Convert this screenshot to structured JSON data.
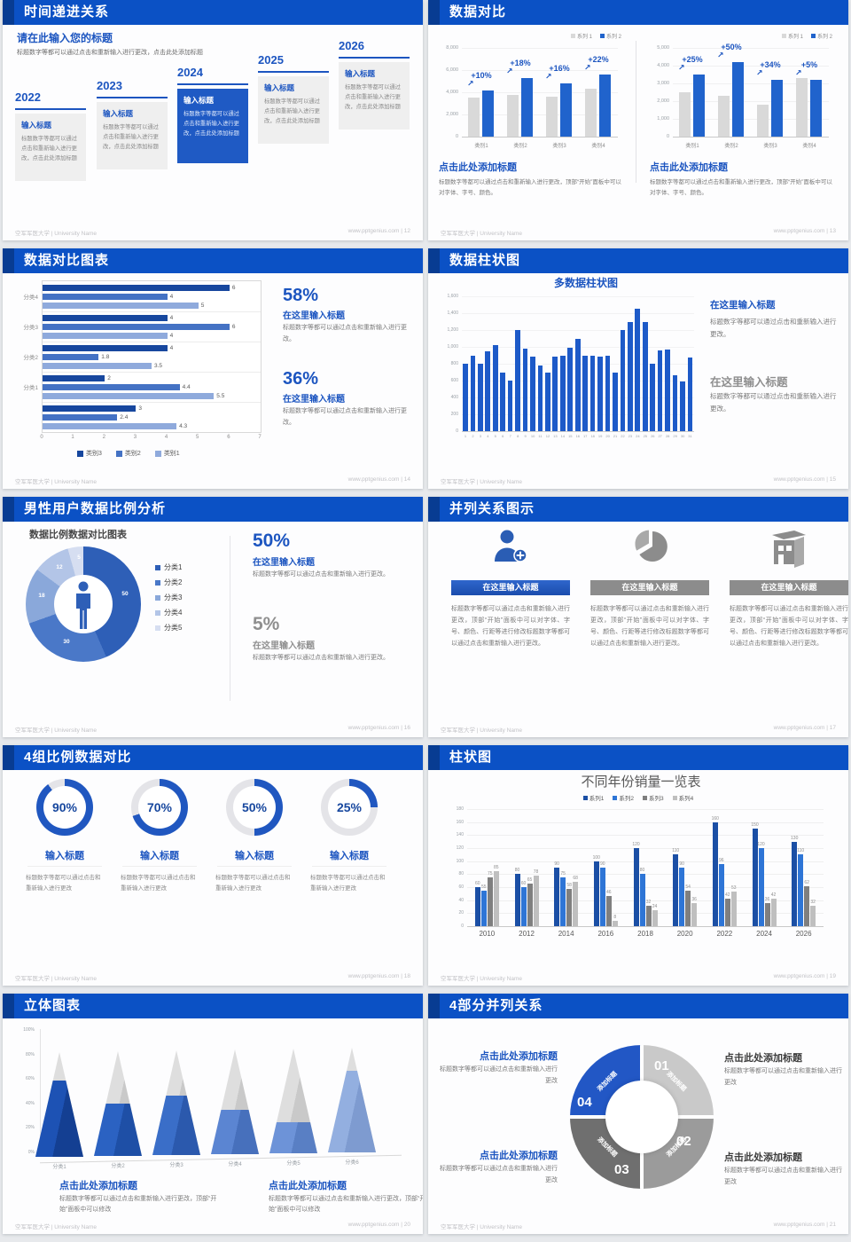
{
  "footer": {
    "left": "空军军医大学 | University Name",
    "site": "www.pptgenius.com",
    "sep": "|"
  },
  "palette": {
    "accent": "#1c55c0",
    "header": "#0b51c5",
    "header_dark": "#083c92",
    "gray_bar": "#d9d9d9",
    "body_text": "#7a7a7a"
  },
  "slides": [
    {
      "title": "时间递进关系",
      "page": "12",
      "intro": {
        "title": "请在此输入您的标题",
        "body": "标题数字等都可以通过点击和重新输入进行更改，点击此处添加标题"
      },
      "item_title": "输入标题",
      "item_body": "标题数字等都可以通过点击和重新输入进行更改，点击此处添加标题",
      "years": [
        "2022",
        "2023",
        "2024",
        "2025",
        "2026"
      ],
      "highlight_year": "2024"
    },
    {
      "title": "数据对比",
      "page": "13",
      "caption_title": "点击此处添加标题",
      "caption_body": "标题数字等都可以通过点击和重新输入进行更改，顶部“开始”面板中可以对字体、字号、颜色。"
    },
    {
      "title": "数据对比图表",
      "page": "14",
      "stats": [
        {
          "value": "58%",
          "title": "在这里输入标题",
          "body": "标题数字等都可以通过点击和重新输入进行更改。",
          "style": "blue"
        },
        {
          "value": "36%",
          "title": "在这里输入标题",
          "body": "标题数字等都可以通过点击和重新输入进行更改。",
          "style": "blue"
        }
      ]
    },
    {
      "title": "数据柱状图",
      "page": "15",
      "notes": [
        {
          "title": "在这里输入标题",
          "body": "标题数字等都可以通过点击和重新输入进行更改。",
          "style": "blue"
        },
        {
          "title": "在这里输入标题",
          "body": "标题数字等都可以通过点击和重新输入进行更改。",
          "style": "gray"
        }
      ]
    },
    {
      "title": "男性用户数据比例分析",
      "page": "16",
      "stats": [
        {
          "value": "50%",
          "title": "在这里输入标题",
          "body": "标题数字等都可以通过点击和重新输入进行更改。",
          "style": "blue"
        },
        {
          "value": "5%",
          "title": "在这里输入标题",
          "body": "标题数字等都可以通过点击和重新输入进行更改。",
          "style": "gray"
        }
      ]
    },
    {
      "title": "并列关系图示",
      "page": "17",
      "banner_title": "在这里输入标题",
      "item_body": "标题数字等都可以通过点击和重新输入进行更改，顶部“开始”面板中可以对字体、字号、颜色、行距等进行修改标题数字等都可以通过点击和重新输入进行更改。",
      "items": [
        {
          "icon": "person-plus-icon",
          "style": "blue"
        },
        {
          "icon": "pie-chart-icon",
          "style": "gray"
        },
        {
          "icon": "building-icon",
          "style": "gray"
        }
      ]
    },
    {
      "title": "4组比例数据对比",
      "page": "18",
      "item_title": "输入标题",
      "item_body": "标题数字等都可以通过点击和重新输入进行更改"
    },
    {
      "title": "柱状图",
      "page": "19"
    },
    {
      "title": "立体图表",
      "page": "20",
      "caption_title": "点击此处添加标题",
      "caption_body": "标题数字等都可以通过点击和重新输入进行更改，顶部“开始”面板中可以修改"
    },
    {
      "title": "4部分并列关系",
      "page": "21",
      "callout_title": "点击此处添加标题",
      "callout_body": "标题数字等都可以通过点击和重新输入进行更改",
      "segment_label": "添加标题",
      "numbers": [
        "01",
        "02",
        "03",
        "04"
      ]
    }
  ],
  "chart_data": [
    {
      "type": "bar",
      "slide_page": "13",
      "position": "left",
      "categories": [
        "类别1",
        "类别2",
        "类别3",
        "类别4"
      ],
      "series": [
        {
          "name": "系列 1",
          "color": "#d9d9d9",
          "values": [
            3500,
            3800,
            3600,
            4300
          ]
        },
        {
          "name": "系列 2",
          "color": "#2063cc",
          "values": [
            4200,
            5300,
            4800,
            5600
          ]
        }
      ],
      "growth_labels": [
        "+10%",
        "+18%",
        "+16%",
        "+22%"
      ],
      "ylim": [
        0,
        8000
      ],
      "yticks": [
        "0",
        "2,000",
        "4,000",
        "6,000",
        "8,000"
      ]
    },
    {
      "type": "bar",
      "slide_page": "13",
      "position": "right",
      "categories": [
        "类别1",
        "类别2",
        "类别3",
        "类别4"
      ],
      "series": [
        {
          "name": "系列 1",
          "color": "#d9d9d9",
          "values": [
            2500,
            2300,
            1800,
            3300
          ]
        },
        {
          "name": "系列 2",
          "color": "#2063cc",
          "values": [
            3500,
            4200,
            3200,
            3200
          ]
        }
      ],
      "growth_labels": [
        "+25%",
        "+50%",
        "+34%",
        "+5%"
      ],
      "ylim": [
        0,
        5000
      ],
      "yticks": [
        "0",
        "1,000",
        "2,000",
        "3,000",
        "4,000",
        "5,000"
      ]
    },
    {
      "type": "bar",
      "orientation": "horizontal",
      "slide_page": "14",
      "series_names": [
        "类别3",
        "类别2",
        "类别1"
      ],
      "series_colors": [
        "#17479e",
        "#4472c4",
        "#8faadc"
      ],
      "groups": [
        {
          "label": "分类4",
          "values": [
            6,
            4,
            5
          ]
        },
        {
          "label": "分类3",
          "values": [
            4,
            6,
            4
          ]
        },
        {
          "label": "分类2",
          "values": [
            4,
            1.8,
            3.5
          ]
        },
        {
          "label": "分类1",
          "values": [
            2,
            4.4,
            5.5
          ]
        },
        {
          "label": "",
          "values": [
            3,
            2.4,
            4.3
          ]
        }
      ],
      "xlim": [
        0,
        7
      ],
      "xticks": [
        "0",
        "1",
        "2",
        "3",
        "4",
        "5",
        "6",
        "7"
      ]
    },
    {
      "type": "bar",
      "slide_page": "15",
      "title": "多数据柱状图",
      "color": "#1d5ac8",
      "x": [
        "1",
        "2",
        "3",
        "4",
        "5",
        "6",
        "7",
        "8",
        "9",
        "10",
        "11",
        "12",
        "13",
        "14",
        "15",
        "16",
        "17",
        "18",
        "19",
        "20",
        "21",
        "22",
        "23",
        "24",
        "25",
        "26",
        "27",
        "28",
        "29",
        "30",
        "31"
      ],
      "values": [
        800,
        900,
        800,
        950,
        1020,
        700,
        600,
        1200,
        980,
        890,
        780,
        700,
        890,
        900,
        990,
        1100,
        900,
        900,
        880,
        900,
        700,
        1200,
        1300,
        1450,
        1300,
        800,
        960,
        970,
        660,
        590,
        870
      ],
      "ylim": [
        0,
        1600
      ],
      "yticks": [
        "0",
        "200",
        "400",
        "600",
        "800",
        "1,000",
        "1,200",
        "1,400",
        "1,600"
      ]
    },
    {
      "type": "pie",
      "slide_page": "16",
      "title": "数据比例数据对比图表",
      "labels": [
        "分类1",
        "分类2",
        "分类3",
        "分类4",
        "分类5"
      ],
      "values": [
        50,
        30,
        18,
        12,
        5
      ],
      "colors": [
        "#2e5fb7",
        "#4a78c8",
        "#8aa8da",
        "#b3c5e7",
        "#d6def1"
      ]
    },
    {
      "type": "donut-progress",
      "slide_page": "18",
      "values": [
        90,
        70,
        50,
        25
      ],
      "unit": "%",
      "color": "#2057c0",
      "track": "#e4e4e8"
    },
    {
      "type": "bar",
      "slide_page": "19",
      "title": "不同年份销量一览表",
      "categories": [
        "2010",
        "2012",
        "2014",
        "2016",
        "2018",
        "2020",
        "2022",
        "2024",
        "2026"
      ],
      "series": [
        {
          "name": "系列1",
          "color": "#1b4fa5",
          "values": [
            60,
            80,
            90,
            100,
            120,
            110,
            160,
            150,
            130
          ]
        },
        {
          "name": "系列2",
          "color": "#2e75d6",
          "values": [
            55,
            60,
            75,
            90,
            80,
            90,
            96,
            120,
            110
          ]
        },
        {
          "name": "系列3",
          "color": "#7f7f7f",
          "values": [
            75,
            65,
            58,
            46,
            32,
            54,
            42,
            36,
            62
          ]
        },
        {
          "name": "系列4",
          "color": "#bfbfbf",
          "values": [
            85,
            78,
            68,
            8,
            24,
            36,
            53,
            42,
            32
          ]
        }
      ],
      "ylim": [
        0,
        180
      ],
      "ytick_step": 20
    },
    {
      "type": "cone",
      "slide_page": "20",
      "categories": [
        "分类1",
        "分类2",
        "分类3",
        "分类4",
        "分类5",
        "分类6"
      ],
      "values": [
        73,
        50,
        57,
        42,
        30,
        78
      ],
      "yticks": [
        "0%",
        "20%",
        "40%",
        "60%",
        "80%",
        "100%"
      ],
      "cone_colors": [
        "#1d52b4",
        "#2b62c2",
        "#3a6ec8",
        "#5b85d2",
        "#6d93d8",
        "#93afe0"
      ],
      "cone_shadows": [
        "#143f92",
        "#1e4fa6",
        "#2b59ad",
        "#4770bc",
        "#597fc4",
        "#7e9bd0"
      ]
    },
    {
      "type": "donut",
      "slide_page": "21",
      "label": "添加标题",
      "segments": [
        {
          "number": "01",
          "color": "#c9c9c9"
        },
        {
          "number": "02",
          "color": "#9b9b9b"
        },
        {
          "number": "03",
          "color": "#6f6f6f"
        },
        {
          "number": "04",
          "color": "#2257c5"
        }
      ]
    }
  ]
}
